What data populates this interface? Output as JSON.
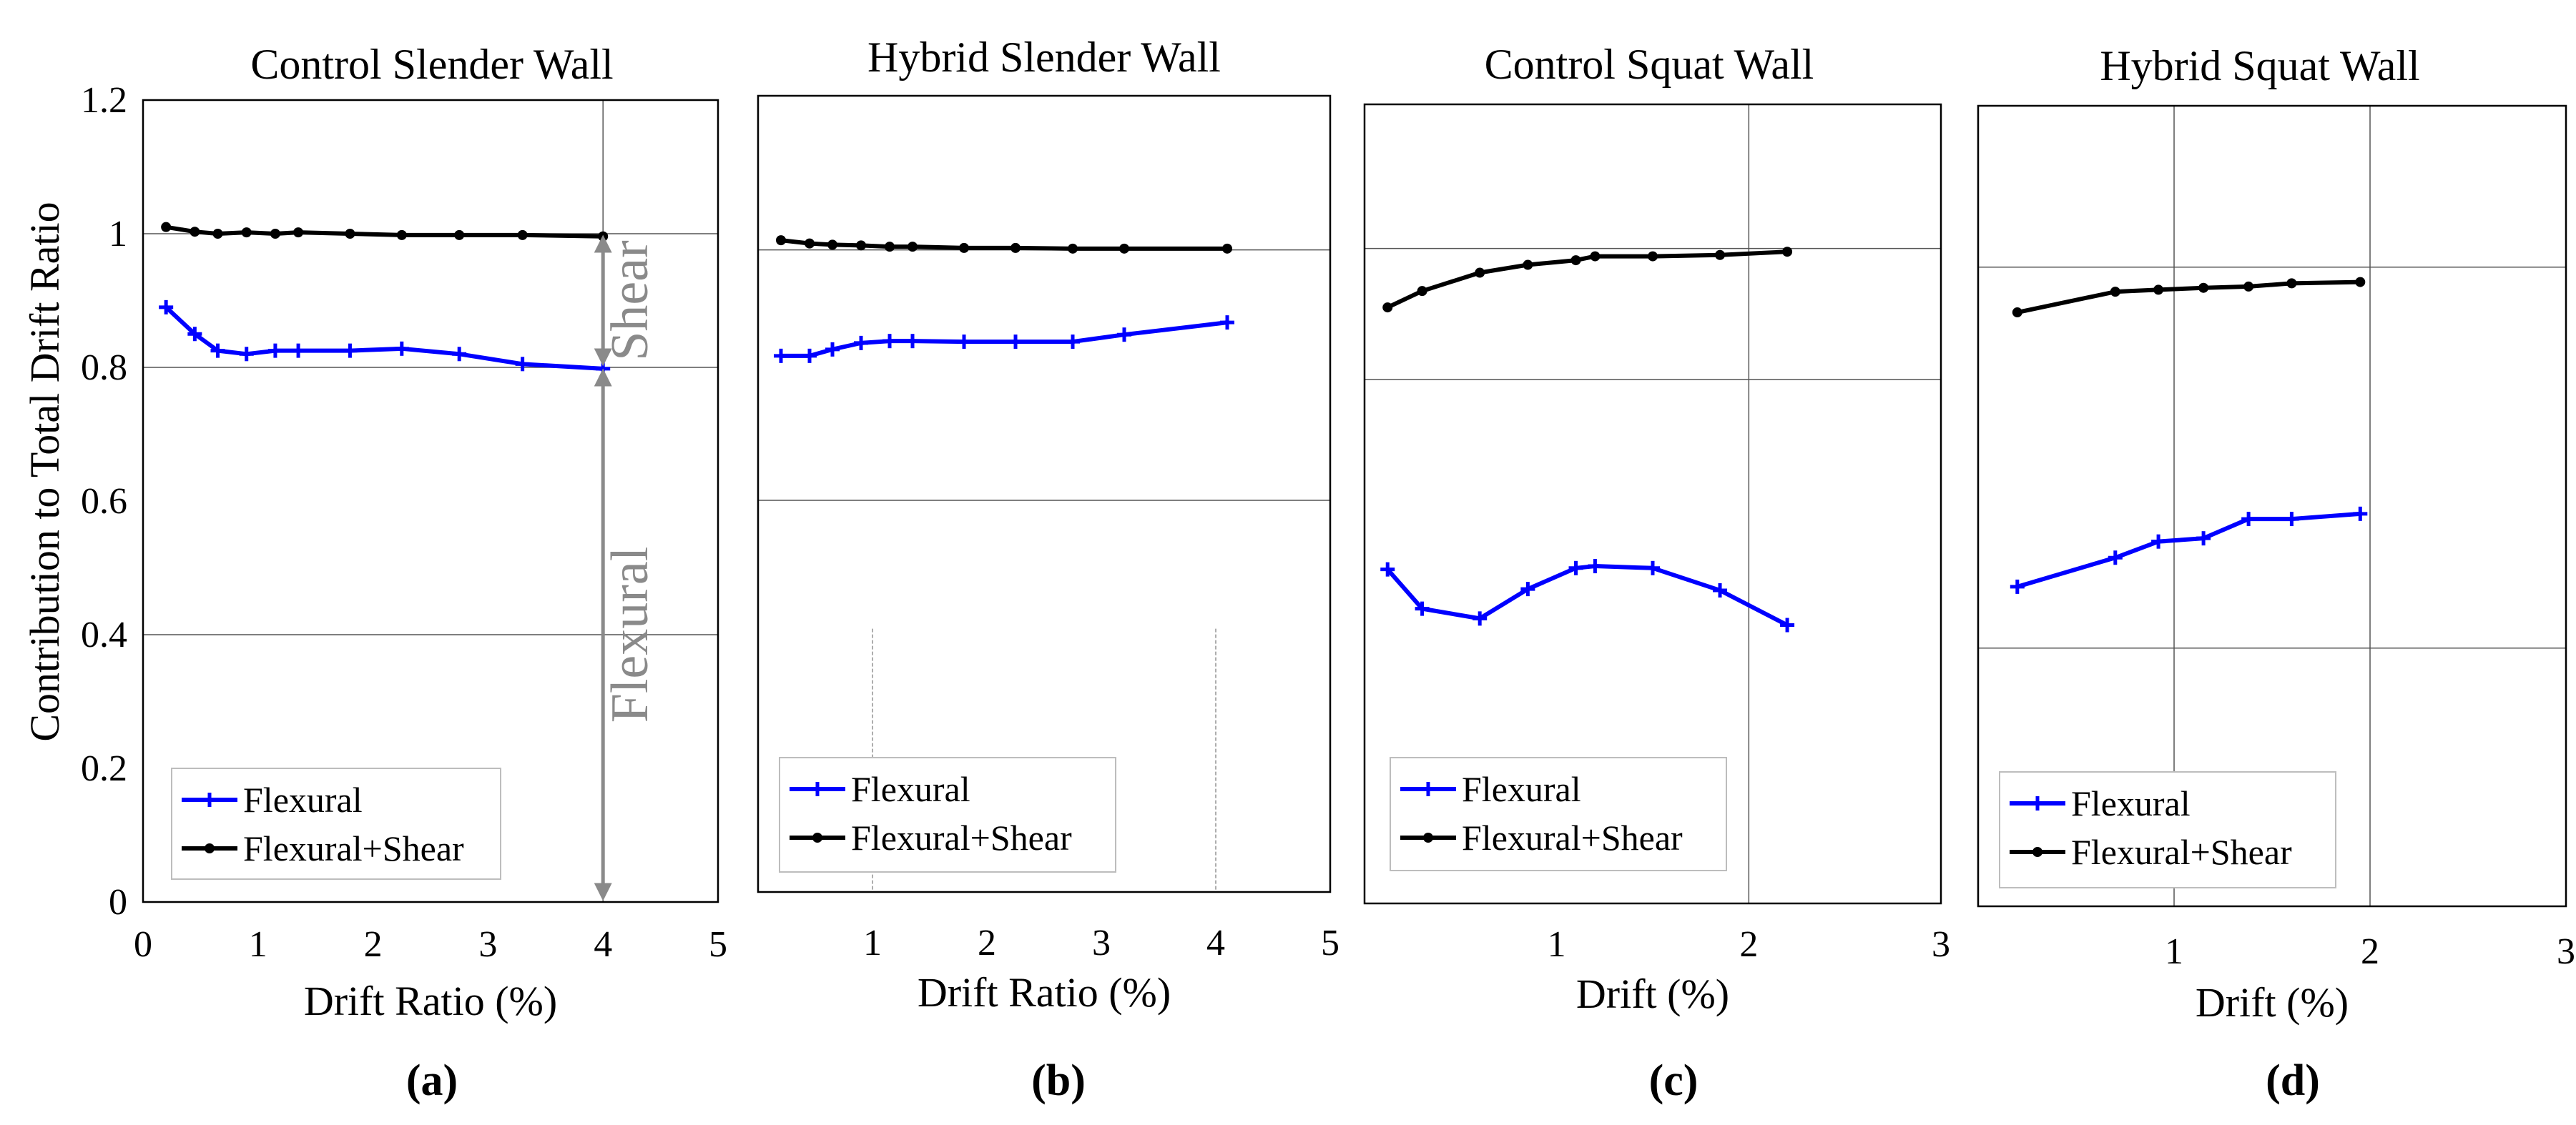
{
  "colors": {
    "flexural": "#0000ff",
    "total": "#000000",
    "annotation": "#8a8a8a"
  },
  "y_axis": {
    "label": "Contribution to Total Drift Ratio",
    "ticks": [
      "0",
      "0.2",
      "0.4",
      "0.6",
      "0.8",
      "1",
      "1.2"
    ],
    "tick_values": [
      0,
      0.2,
      0.4,
      0.6,
      0.8,
      1.0,
      1.2
    ],
    "ylim": [
      0,
      1.2
    ]
  },
  "legend": {
    "series1": "Flexural",
    "series2": "Flexural+Shear"
  },
  "annotations": {
    "shear": "Shear",
    "flexural": "Flexural"
  },
  "chart_data": [
    {
      "type": "line",
      "subfig": "(a)",
      "title": "Control Slender Wall",
      "xlabel": "Drift Ratio (%)",
      "xlim": [
        0,
        5
      ],
      "xticks": [
        "0",
        "1",
        "2",
        "3",
        "4",
        "5"
      ],
      "xtick_values": [
        0,
        1,
        2,
        3,
        4,
        5
      ],
      "ylim": [
        0,
        1.2
      ],
      "series": [
        {
          "name": "Flexural",
          "x": [
            0.2,
            0.45,
            0.65,
            0.9,
            1.15,
            1.35,
            1.8,
            2.25,
            2.75,
            3.3,
            4.0
          ],
          "y": [
            0.89,
            0.85,
            0.825,
            0.82,
            0.825,
            0.825,
            0.825,
            0.828,
            0.82,
            0.805,
            0.798
          ]
        },
        {
          "name": "Flexural+Shear",
          "x": [
            0.2,
            0.45,
            0.65,
            0.9,
            1.15,
            1.35,
            1.8,
            2.25,
            2.75,
            3.3,
            4.0
          ],
          "y": [
            1.01,
            1.003,
            1.0,
            1.002,
            1.0,
            1.002,
            1.0,
            0.998,
            0.998,
            0.998,
            0.996
          ]
        }
      ]
    },
    {
      "type": "line",
      "subfig": "(b)",
      "title": "Hybrid Slender Wall",
      "xlabel": "Drift Ratio (%)",
      "xlim": [
        0,
        5
      ],
      "xticks": [
        "1",
        "2",
        "3",
        "4",
        "5"
      ],
      "xtick_values": [
        1,
        2,
        3,
        4,
        5
      ],
      "ylim": [
        0,
        1.2
      ],
      "series": [
        {
          "name": "Flexural",
          "x": [
            0.2,
            0.45,
            0.65,
            0.9,
            1.15,
            1.35,
            1.8,
            2.25,
            2.75,
            3.2,
            4.1
          ],
          "y": [
            0.835,
            0.835,
            0.845,
            0.855,
            0.858,
            0.858,
            0.857,
            0.857,
            0.857,
            0.868,
            0.887
          ]
        },
        {
          "name": "Flexural+Shear",
          "x": [
            0.2,
            0.45,
            0.65,
            0.9,
            1.15,
            1.35,
            1.8,
            2.25,
            2.75,
            3.2,
            4.1
          ],
          "y": [
            1.015,
            1.01,
            1.008,
            1.007,
            1.005,
            1.005,
            1.003,
            1.003,
            1.002,
            1.002,
            1.002
          ]
        }
      ]
    },
    {
      "type": "line",
      "subfig": "(c)",
      "title": "Control Squat Wall",
      "xlabel": "Drift (%)",
      "xlim": [
        0,
        3
      ],
      "xticks": [
        "1",
        "2",
        "3"
      ],
      "xtick_values": [
        1,
        2,
        3
      ],
      "ylim": [
        0,
        1.2
      ],
      "series": [
        {
          "name": "Flexural",
          "x": [
            0.12,
            0.3,
            0.6,
            0.85,
            1.1,
            1.2,
            1.5,
            1.85,
            2.2
          ],
          "y": [
            0.51,
            0.45,
            0.435,
            0.48,
            0.512,
            0.515,
            0.512,
            0.478,
            0.425
          ]
        },
        {
          "name": "Flexural+Shear",
          "x": [
            0.12,
            0.3,
            0.6,
            0.85,
            1.1,
            1.2,
            1.5,
            1.85,
            2.2
          ],
          "y": [
            0.91,
            0.935,
            0.963,
            0.975,
            0.982,
            0.988,
            0.988,
            0.99,
            0.995
          ]
        }
      ]
    },
    {
      "type": "line",
      "subfig": "(d)",
      "title": "Hybrid Squat Wall",
      "xlabel": "Drift (%)",
      "xlim": [
        0,
        3
      ],
      "xticks": [
        "1",
        "2",
        "3"
      ],
      "xtick_values": [
        1,
        2,
        3
      ],
      "ylim": [
        0,
        1.2
      ],
      "series": [
        {
          "name": "Flexural",
          "x": [
            0.2,
            0.7,
            0.92,
            1.15,
            1.38,
            1.6,
            1.95
          ],
          "y": [
            0.495,
            0.54,
            0.565,
            0.57,
            0.6,
            0.6,
            0.608
          ]
        },
        {
          "name": "Flexural+Shear",
          "x": [
            0.2,
            0.7,
            0.92,
            1.15,
            1.38,
            1.6,
            1.95
          ],
          "y": [
            0.92,
            0.952,
            0.955,
            0.958,
            0.96,
            0.965,
            0.967
          ]
        }
      ]
    }
  ]
}
